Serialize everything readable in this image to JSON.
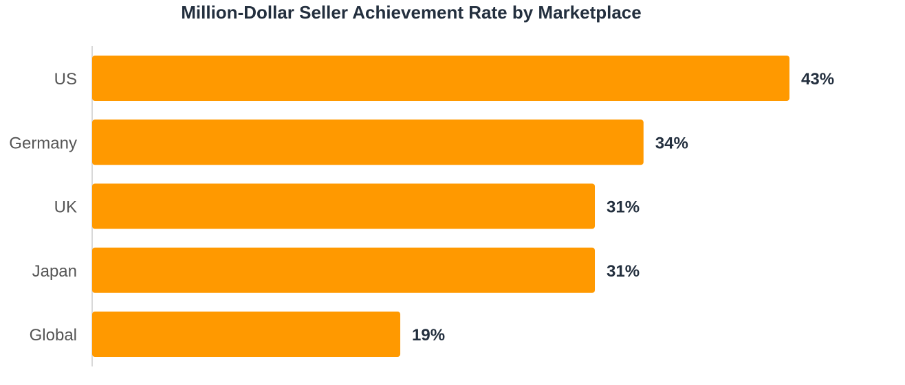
{
  "chart_data": {
    "type": "bar",
    "orientation": "horizontal",
    "title": "Million-Dollar Seller Achievement Rate by Marketplace",
    "categories": [
      "US",
      "Germany",
      "UK",
      "Japan",
      "Global"
    ],
    "values": [
      43,
      34,
      31,
      31,
      19
    ],
    "value_labels": [
      "43%",
      "34%",
      "31%",
      "31%",
      "19%"
    ],
    "unit": "%",
    "xlim": [
      0,
      43
    ],
    "grid": false,
    "legend": "none",
    "colors": {
      "bar": "#FF9900",
      "title": "#232F3E",
      "value_label": "#232F3E",
      "category_label": "#555555",
      "axis_line": "#D9D9D9"
    }
  }
}
